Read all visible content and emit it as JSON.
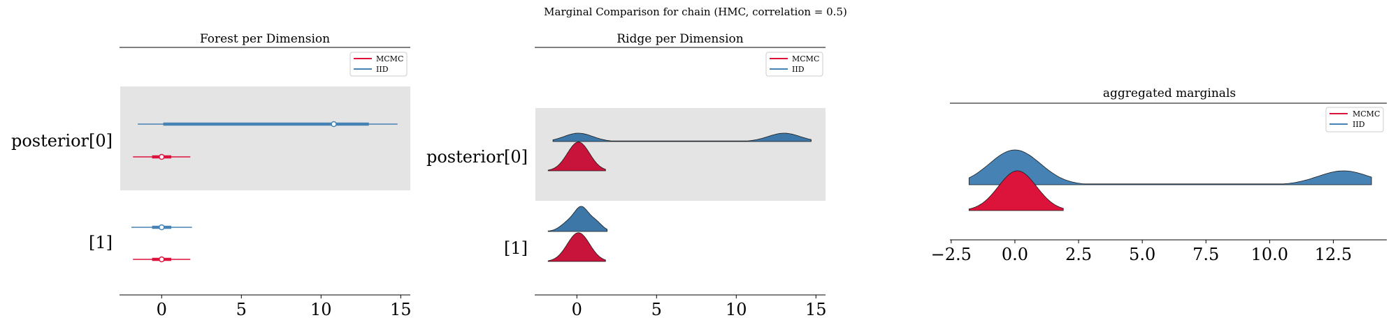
{
  "figure": {
    "suptitle": "Marginal Comparison for chain (HMC, correlation = 0.5)"
  },
  "legend": {
    "entries": [
      {
        "label": "MCMC",
        "color": "#dc143c"
      },
      {
        "label": "IID",
        "color": "#4682b4"
      }
    ]
  },
  "colors": {
    "mcmc": "#dc143c",
    "mcmc_ridge": "#c8143a",
    "iid": "#4682b4",
    "iid_ridge": "#3d77a8",
    "shade": "#e4e4e4"
  },
  "chart_data": [
    {
      "type": "forest",
      "title": "Forest per Dimension",
      "xlim": [
        -2.6,
        15.6
      ],
      "xticks": [
        0,
        5,
        10,
        15
      ],
      "xtick_labels": [
        "0",
        "5",
        "10",
        "15"
      ],
      "ytick_labels": [
        "posterior[0]",
        "[1]"
      ],
      "shaded_rows": [
        "posterior[0]"
      ],
      "legend_position": "top-right",
      "rows": [
        {
          "label": "posterior[0]",
          "series": [
            {
              "name": "IID",
              "hdi_outer": [
                -1.5,
                14.8
              ],
              "hdi_inner": [
                0.1,
                13.0
              ],
              "point": 10.8
            },
            {
              "name": "MCMC",
              "hdi_outer": [
                -1.8,
                1.8
              ],
              "hdi_inner": [
                -0.6,
                0.6
              ],
              "point": 0.0
            }
          ]
        },
        {
          "label": "[1]",
          "series": [
            {
              "name": "IID",
              "hdi_outer": [
                -1.9,
                1.9
              ],
              "hdi_inner": [
                -0.6,
                0.6
              ],
              "point": 0.0
            },
            {
              "name": "MCMC",
              "hdi_outer": [
                -1.8,
                1.8
              ],
              "hdi_inner": [
                -0.6,
                0.6
              ],
              "point": 0.0
            }
          ]
        }
      ]
    },
    {
      "type": "ridge",
      "title": "Ridge per Dimension",
      "xlim": [
        -2.6,
        15.6
      ],
      "xticks": [
        0,
        5,
        10,
        15
      ],
      "xtick_labels": [
        "0",
        "5",
        "10",
        "15"
      ],
      "ytick_labels": [
        "posterior[0]",
        "[1]"
      ],
      "shaded_rows": [
        "posterior[0]"
      ],
      "legend_position": "top-right",
      "rows": [
        {
          "label": "posterior[0]",
          "series": [
            {
              "name": "IID",
              "range": [
                -1.5,
                14.7
              ],
              "components": [
                {
                  "mu": 0.1,
                  "sigma": 0.9,
                  "w": 0.16
                },
                {
                  "mu": 13.0,
                  "sigma": 1.0,
                  "w": 0.16
                }
              ]
            },
            {
              "name": "MCMC",
              "range": [
                -1.8,
                1.8
              ],
              "components": [
                {
                  "mu": 0.1,
                  "sigma": 0.7,
                  "w": 0.55
                }
              ]
            }
          ]
        },
        {
          "label": "[1]",
          "series": [
            {
              "name": "IID",
              "range": [
                -1.8,
                1.9
              ],
              "components": [
                {
                  "mu": -0.4,
                  "sigma": 0.55,
                  "w": 0.2
                },
                {
                  "mu": 0.3,
                  "sigma": 0.4,
                  "w": 0.35
                },
                {
                  "mu": 1.1,
                  "sigma": 0.45,
                  "w": 0.2
                }
              ]
            },
            {
              "name": "MCMC",
              "range": [
                -1.8,
                1.8
              ],
              "components": [
                {
                  "mu": 0.1,
                  "sigma": 0.7,
                  "w": 0.55
                }
              ]
            }
          ]
        }
      ]
    },
    {
      "type": "area",
      "title": "aggregated marginals",
      "xlim": [
        -2.55,
        14.6
      ],
      "xticks": [
        -2.5,
        0.0,
        2.5,
        5.0,
        7.5,
        10.0,
        12.5
      ],
      "xtick_labels": [
        "−2.5",
        "0.0",
        "2.5",
        "5.0",
        "7.5",
        "10.0",
        "12.5"
      ],
      "legend_position": "top-right",
      "series": [
        {
          "name": "IID",
          "range": [
            -1.8,
            14.0
          ],
          "components": [
            {
              "mu": 0.0,
              "sigma": 1.0,
              "w": 0.5
            },
            {
              "mu": 12.9,
              "sigma": 1.0,
              "w": 0.2
            }
          ]
        },
        {
          "name": "MCMC",
          "range": [
            -1.8,
            1.9
          ],
          "components": [
            {
              "mu": 0.1,
              "sigma": 0.75,
              "w": 0.57
            }
          ]
        }
      ]
    }
  ]
}
